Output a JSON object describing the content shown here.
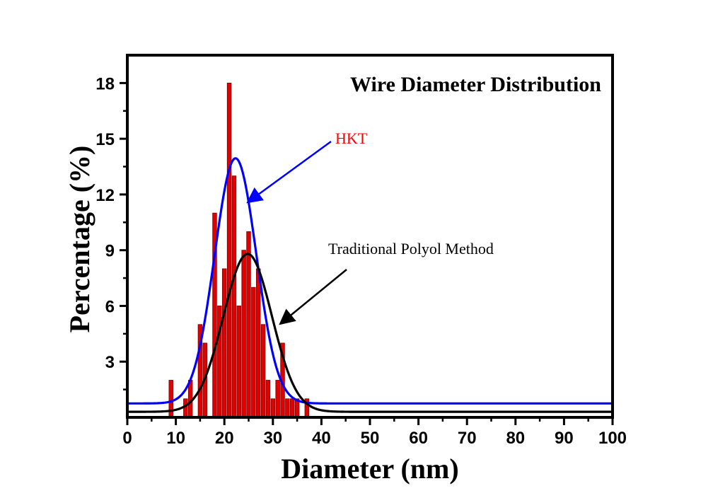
{
  "chart_data": {
    "type": "bar",
    "title": "Wire Diameter Distribution",
    "xlabel": "Diameter (nm)",
    "ylabel": "Percentage (%)",
    "xlim": [
      0,
      100
    ],
    "ylim": [
      0,
      19.5
    ],
    "xticks": [
      0,
      10,
      20,
      30,
      40,
      50,
      60,
      70,
      80,
      90,
      100
    ],
    "yticks": [
      3,
      6,
      9,
      12,
      15,
      18
    ],
    "grid": false,
    "bar_color": "#e00000",
    "bars": {
      "x": [
        9,
        12,
        13,
        15,
        16,
        18,
        19,
        20,
        21,
        22,
        23,
        24,
        25,
        26,
        27,
        28,
        29,
        30,
        31,
        32,
        33,
        34,
        35,
        37
      ],
      "values": [
        2,
        1,
        2,
        5,
        4,
        11,
        6,
        8,
        18,
        13,
        6,
        9,
        10,
        7,
        8,
        5,
        2,
        1,
        2,
        4,
        1,
        1,
        1,
        1
      ]
    },
    "series": [
      {
        "name": "HKT",
        "type": "gaussian",
        "color": "#0000ff",
        "baseline": 0.75,
        "peak": 13.2,
        "center": 22.3,
        "sigma": 4.3
      },
      {
        "name": "Traditional Polyol Method",
        "type": "gaussian",
        "color": "#000000",
        "baseline": 0.3,
        "peak": 8.5,
        "center": 24.8,
        "sigma": 5.0
      }
    ],
    "annotations": [
      {
        "text": "HKT",
        "color": "#ff0000",
        "arrow_color": "#0000ff"
      },
      {
        "text": "Traditional Polyol Method",
        "color": "#000000",
        "arrow_color": "#000000"
      }
    ]
  }
}
